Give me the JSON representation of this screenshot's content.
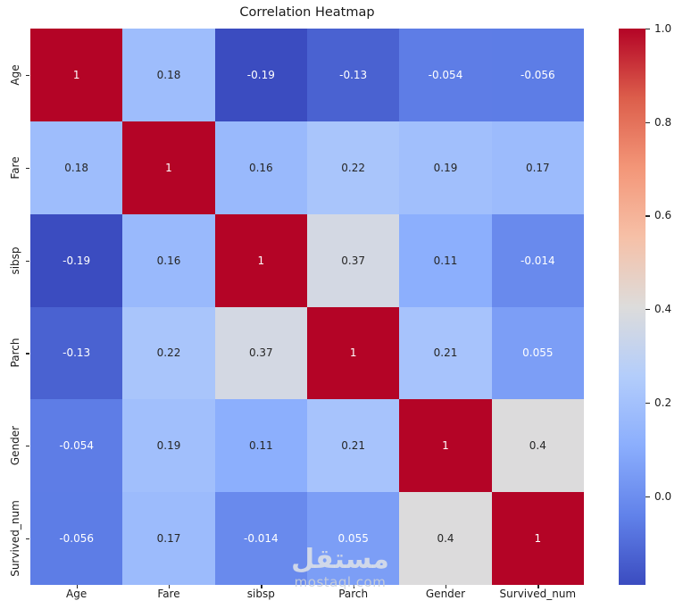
{
  "title": "Correlation Heatmap",
  "watermark": {
    "logo": "مستقل",
    "domain": "mostaql.com"
  },
  "chart_data": {
    "type": "heatmap",
    "title": "Correlation Heatmap",
    "categories": [
      "Age",
      "Fare",
      "sibsp",
      "Parch",
      "Gender",
      "Survived_num"
    ],
    "x_categories": [
      "Age",
      "Fare",
      "sibsp",
      "Parch",
      "Gender",
      "Survived_num"
    ],
    "y_categories": [
      "Age",
      "Fare",
      "sibsp",
      "Parch",
      "Gender",
      "Survived_num"
    ],
    "matrix": [
      [
        1,
        0.18,
        -0.19,
        -0.13,
        -0.054,
        -0.056
      ],
      [
        0.18,
        1,
        0.16,
        0.22,
        0.19,
        0.17
      ],
      [
        -0.19,
        0.16,
        1,
        0.37,
        0.11,
        -0.014
      ],
      [
        -0.13,
        0.22,
        0.37,
        1,
        0.21,
        0.055
      ],
      [
        -0.054,
        0.19,
        0.11,
        0.21,
        1,
        0.4
      ],
      [
        -0.056,
        0.17,
        -0.014,
        0.055,
        0.4,
        1
      ]
    ],
    "vmin": -0.19,
    "vmax": 1.0,
    "colormap": "coolwarm",
    "colormap_anchors": [
      [
        0.0,
        "#3b4cc0"
      ],
      [
        0.125,
        "#6182ea"
      ],
      [
        0.25,
        "#8baefd"
      ],
      [
        0.375,
        "#b3cdfb"
      ],
      [
        0.5,
        "#dddcdb"
      ],
      [
        0.625,
        "#f6c0a7"
      ],
      [
        0.75,
        "#f39678"
      ],
      [
        0.875,
        "#dc5e4b"
      ],
      [
        1.0,
        "#b40426"
      ]
    ],
    "annotation_colors": {
      "dark": "#262626",
      "light": "#ffffff"
    },
    "colorbar": {
      "position": "right",
      "tick_labels": [
        "1.0",
        "0.8",
        "0.6",
        "0.4",
        "0.2",
        "0.0"
      ],
      "tick_values": [
        1.0,
        0.8,
        0.6,
        0.4,
        0.2,
        0.0
      ]
    },
    "grid": false,
    "legend_position": "none"
  }
}
